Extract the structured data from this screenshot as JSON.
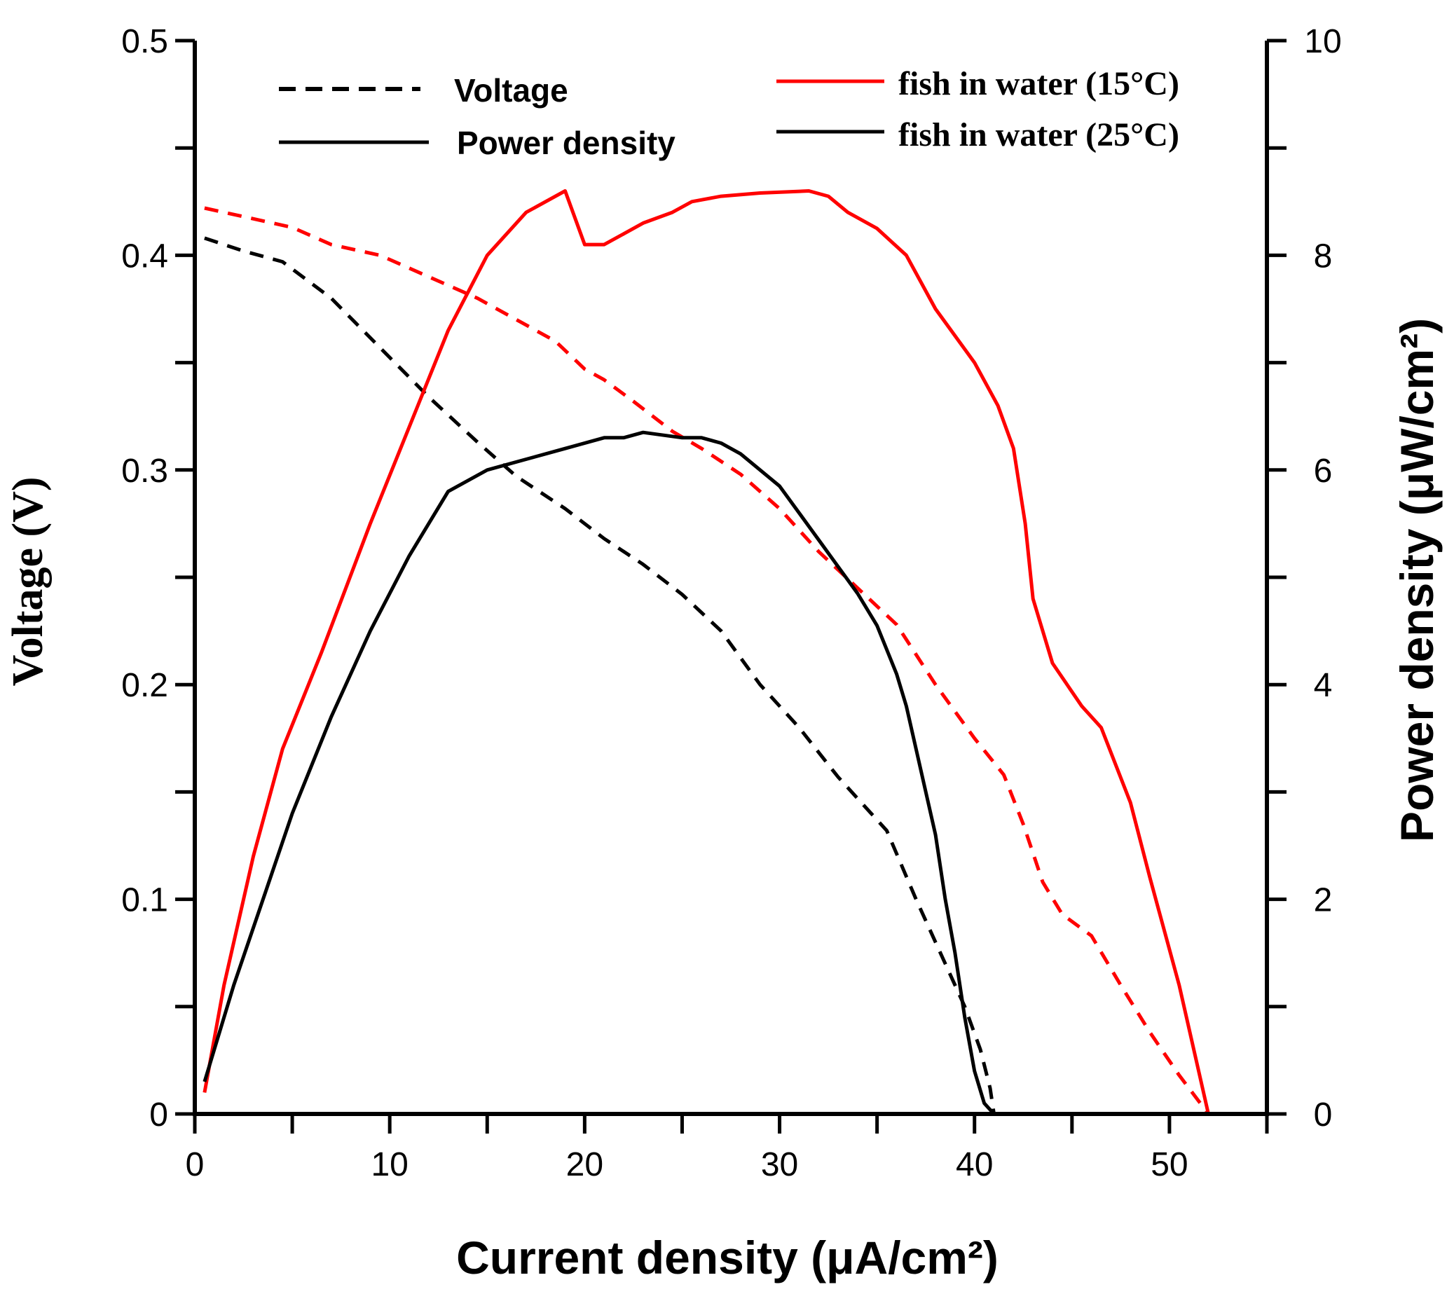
{
  "chart_data": {
    "type": "line",
    "xlabel": "Current density (μA/cm²)",
    "ylabel_left": "Voltage (V)",
    "ylabel_right": "Power density (μW/cm²)",
    "xlim": [
      0,
      55
    ],
    "ylim_left": [
      0,
      0.5
    ],
    "ylim_right": [
      0,
      10
    ],
    "xticks": [
      0,
      10,
      20,
      30,
      40,
      50
    ],
    "yticks_left": [
      0,
      0.1,
      0.2,
      0.3,
      0.4,
      0.5
    ],
    "yticks_left_labels": [
      "0",
      "0.1",
      "0.2",
      "0.3",
      "0.4",
      "0.5"
    ],
    "yticks_right": [
      0,
      2,
      4,
      6,
      8,
      10
    ],
    "grid": false,
    "legend_style": [
      {
        "label": "Voltage",
        "dash": "dashed"
      },
      {
        "label": "Power density",
        "dash": "solid"
      }
    ],
    "legend_condition": [
      {
        "label": "fish in water (15°C)",
        "color": "#ff0000"
      },
      {
        "label": "fish in water (25°C)",
        "color": "#000000"
      }
    ],
    "series": [
      {
        "name": "Voltage - fish in water (15°C)",
        "axis": "left",
        "color": "#ff0000",
        "dash": "dashed",
        "x": [
          0.5,
          2.5,
          5,
          7,
          9.5,
          12,
          14.5,
          16.5,
          18.5,
          20,
          21,
          22.5,
          24.5,
          26,
          28,
          30,
          32,
          34,
          36,
          38,
          40,
          41.5,
          42.5,
          43.5,
          44.5,
          46,
          47.5,
          49,
          50.5,
          52
        ],
        "y": [
          0.422,
          0.418,
          0.413,
          0.405,
          0.4,
          0.39,
          0.38,
          0.37,
          0.36,
          0.347,
          0.342,
          0.332,
          0.318,
          0.31,
          0.298,
          0.282,
          0.262,
          0.245,
          0.228,
          0.2,
          0.175,
          0.158,
          0.135,
          0.108,
          0.093,
          0.083,
          0.06,
          0.038,
          0.018,
          0.0
        ]
      },
      {
        "name": "Voltage - fish in water (25°C)",
        "axis": "left",
        "color": "#000000",
        "dash": "dashed",
        "x": [
          0.5,
          2.5,
          4.5,
          7,
          9.5,
          12,
          14.5,
          16.5,
          19,
          21,
          23,
          25,
          27,
          29,
          31,
          33,
          35.5,
          37,
          38.5,
          39.5,
          40.3,
          40.8,
          41.0
        ],
        "y": [
          0.408,
          0.402,
          0.397,
          0.38,
          0.357,
          0.334,
          0.313,
          0.297,
          0.282,
          0.268,
          0.256,
          0.242,
          0.225,
          0.2,
          0.18,
          0.157,
          0.132,
          0.1,
          0.07,
          0.05,
          0.03,
          0.012,
          0.0
        ]
      },
      {
        "name": "Power density - fish in water (15°C)",
        "axis": "right",
        "color": "#ff0000",
        "dash": "solid",
        "x": [
          0.5,
          1.5,
          3,
          4.5,
          6.5,
          9,
          11,
          13,
          15,
          17,
          19,
          20,
          21,
          22,
          23,
          24.5,
          25.5,
          27,
          29,
          31.5,
          32.5,
          33.5,
          35,
          36.5,
          38,
          40,
          41.2,
          42,
          42.6,
          43,
          44,
          45.5,
          46.5,
          48,
          49,
          50.5,
          52
        ],
        "y": [
          0.2,
          1.2,
          2.4,
          3.4,
          4.3,
          5.5,
          6.4,
          7.3,
          8.0,
          8.4,
          8.6,
          8.1,
          8.1,
          8.2,
          8.3,
          8.4,
          8.5,
          8.55,
          8.58,
          8.6,
          8.55,
          8.4,
          8.25,
          8.0,
          7.5,
          7.0,
          6.6,
          6.2,
          5.5,
          4.8,
          4.2,
          3.8,
          3.6,
          2.9,
          2.2,
          1.2,
          0.0
        ]
      },
      {
        "name": "Power density - fish in water (25°C)",
        "axis": "right",
        "color": "#000000",
        "dash": "solid",
        "x": [
          0.5,
          2,
          3.5,
          5,
          7,
          9,
          11,
          13,
          15,
          17,
          19,
          21,
          22,
          23,
          25,
          26,
          27,
          28,
          29,
          30,
          31,
          32,
          33,
          34,
          35,
          36,
          36.5,
          37,
          37.5,
          38,
          38.5,
          39,
          39.5,
          40,
          40.5,
          41
        ],
        "y": [
          0.3,
          1.2,
          2.0,
          2.8,
          3.7,
          4.5,
          5.2,
          5.8,
          6.0,
          6.1,
          6.2,
          6.3,
          6.3,
          6.35,
          6.3,
          6.3,
          6.25,
          6.15,
          6.0,
          5.85,
          5.6,
          5.35,
          5.1,
          4.85,
          4.55,
          4.1,
          3.8,
          3.4,
          3.0,
          2.6,
          2.0,
          1.5,
          0.9,
          0.4,
          0.1,
          0.0
        ]
      }
    ]
  }
}
